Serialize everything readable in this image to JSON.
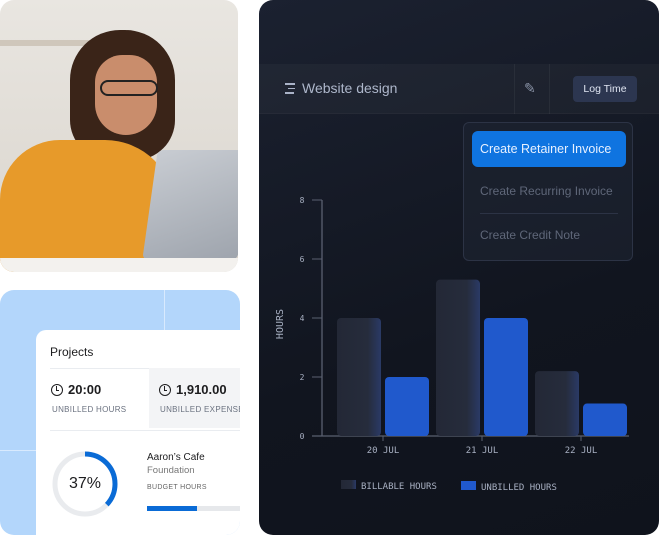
{
  "photo": {
    "alt": "woman working on laptop"
  },
  "projects_card": {
    "title": "Projects",
    "stats": [
      {
        "value": "20:00",
        "label": "UNBILLED HOURS",
        "icon": "clock-icon"
      },
      {
        "value": "1,910.00",
        "label": "UNBILLED EXPENSES",
        "icon": "clock-icon"
      }
    ],
    "progress_percent": 37,
    "progress_label": "37%",
    "project_name": "Aaron’s Cafe",
    "project_sub": "Foundation",
    "budget_label": "BUDGET HOURS",
    "budget_fraction": 0.45,
    "accent": "#0a6bd6"
  },
  "header": {
    "title": "Website design",
    "log_time": "Log Time"
  },
  "dropdown": {
    "items": [
      "Create Retainer Invoice",
      "Create Recurring Invoice",
      "Create Credit Note"
    ],
    "active_color": "#0f74e0"
  },
  "chart_data": {
    "type": "bar",
    "categories": [
      "20 JUL",
      "21 JUL",
      "22 JUL"
    ],
    "series": [
      {
        "name": "BILLABLE HOURS",
        "values": [
          4,
          5.3,
          2.2
        ],
        "color": "#262c3b"
      },
      {
        "name": "UNBILLED HOURS",
        "values": [
          2,
          4,
          1.1
        ],
        "color": "#2059cc"
      }
    ],
    "ylabel": "HOURS",
    "yticks": [
      0,
      2,
      4,
      6,
      8
    ],
    "ylim": [
      0,
      8
    ],
    "grid": false,
    "legend": "bottom"
  }
}
